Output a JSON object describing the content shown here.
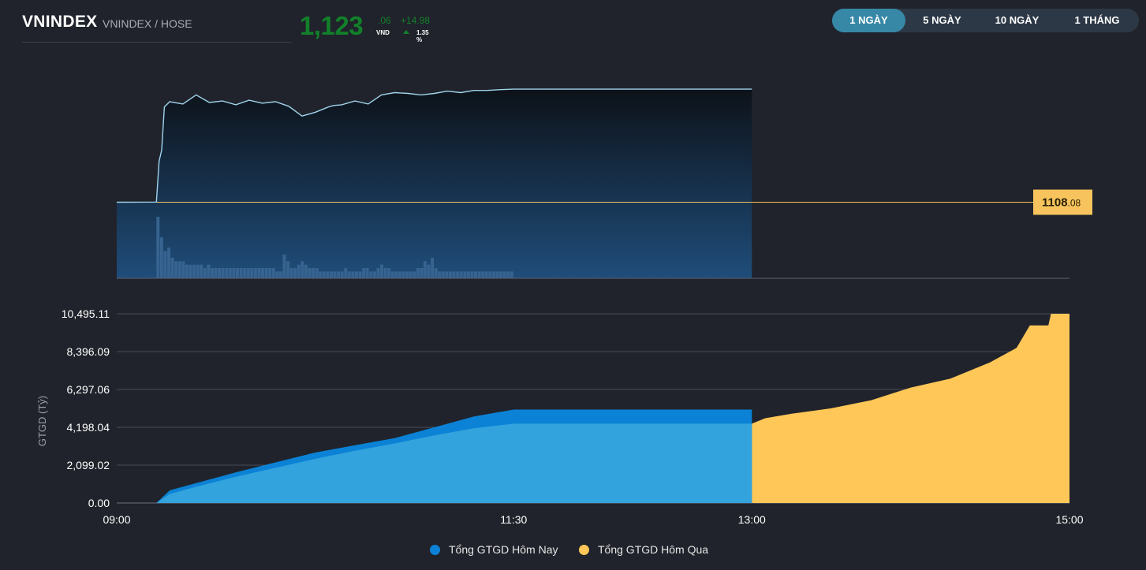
{
  "header": {
    "title": "VNINDEX",
    "subtitle": "VNINDEX / HOSE",
    "price_int": "1,123",
    "price_dec": ".06",
    "price_unit": "VND",
    "change": "+14.98",
    "change_pct": "1.35 %"
  },
  "tabs": [
    {
      "label": "1 NGÀY",
      "active": true
    },
    {
      "label": "5 NGÀY",
      "active": false
    },
    {
      "label": "10 NGÀY",
      "active": false
    },
    {
      "label": "1 THÁNG",
      "active": false
    }
  ],
  "colors": {
    "up": "#12802a",
    "index_line": "#9fd3ec",
    "reference": "#f6c35d",
    "today_light": "#33a3de",
    "today_dark": "#0b82d6",
    "yesterday": "#ffc758",
    "volume": "#36638f"
  },
  "chart_data": [
    {
      "type": "line",
      "name": "intraday-index",
      "reference_label_int": "1108",
      "reference_label_dec": ".08",
      "reference_value": 1108.08,
      "ylim": [
        1098,
        1126
      ],
      "x_range": [
        "09:00",
        "15:00"
      ],
      "series": [
        {
          "x": [
            "09:15",
            "09:16",
            "09:17",
            "09:18",
            "09:20",
            "09:25",
            "09:30",
            "09:35",
            "09:40",
            "09:45",
            "09:50",
            "09:55",
            "10:00",
            "10:05",
            "10:10",
            "10:15",
            "10:20",
            "10:22",
            "10:25",
            "10:30",
            "10:35",
            "10:40",
            "10:45",
            "10:50",
            "10:55",
            "11:00",
            "11:05",
            "11:10",
            "11:15",
            "11:20",
            "11:25",
            "11:30",
            "12:00",
            "13:00"
          ],
          "values": [
            1108.1,
            1113.5,
            1115.0,
            1120.7,
            1121.4,
            1121.1,
            1122.3,
            1121.3,
            1121.5,
            1121.0,
            1121.6,
            1121.2,
            1121.4,
            1120.8,
            1119.5,
            1120.0,
            1120.7,
            1120.9,
            1121.0,
            1121.5,
            1121.1,
            1122.3,
            1122.6,
            1122.5,
            1122.3,
            1122.5,
            1122.8,
            1122.6,
            1122.9,
            1122.9,
            1123.0,
            1123.06,
            1123.06,
            1123.06
          ]
        }
      ],
      "volume": {
        "x_start": "09:15",
        "x_end": "11:30",
        "values": [
          18,
          12,
          8,
          9,
          6,
          5,
          5,
          5,
          4,
          4,
          4,
          4,
          4,
          3,
          4,
          3,
          3,
          3,
          3,
          3,
          3,
          3,
          3,
          3,
          3,
          3,
          3,
          3,
          3,
          3,
          3,
          3,
          3,
          2,
          2,
          7,
          5,
          3,
          3,
          4,
          5,
          4,
          3,
          3,
          3,
          2,
          2,
          2,
          2,
          2,
          2,
          2,
          3,
          2,
          2,
          2,
          2,
          3,
          3,
          2,
          2,
          3,
          4,
          3,
          3,
          2,
          2,
          2,
          2,
          2,
          2,
          2,
          3,
          3,
          5,
          4,
          6,
          3,
          2,
          2,
          2,
          2,
          2,
          2,
          2,
          2,
          2,
          2,
          2,
          2,
          2,
          2,
          2,
          2,
          2,
          2,
          2,
          2,
          2
        ]
      }
    },
    {
      "type": "area",
      "ylabel": "GTGD (Tỷ)",
      "x_ticks": [
        "09:00",
        "11:30",
        "13:00",
        "15:00"
      ],
      "y_ticks": [
        "0.00",
        "2,099.02",
        "4,198.04",
        "6,297.06",
        "8,396.09",
        "10,495.11"
      ],
      "ylim": [
        0,
        10495.11
      ],
      "grid": true,
      "legend_position": "bottom",
      "series": [
        {
          "name": "Tổng GTGD Hôm Nay",
          "x": [
            "09:00",
            "09:15",
            "09:20",
            "09:30",
            "09:45",
            "10:00",
            "10:15",
            "10:30",
            "10:45",
            "11:00",
            "11:15",
            "11:30",
            "13:00"
          ],
          "values": [
            0,
            0,
            700,
            1100,
            1700,
            2250,
            2800,
            3200,
            3600,
            4200,
            4800,
            5180,
            5180
          ]
        },
        {
          "name": "Tổng GTGD Hôm Qua",
          "x": [
            "09:00",
            "09:15",
            "09:20",
            "09:30",
            "09:45",
            "10:00",
            "10:15",
            "10:30",
            "10:45",
            "11:00",
            "11:15",
            "11:30",
            "13:00",
            "13:05",
            "13:15",
            "13:30",
            "13:45",
            "14:00",
            "14:15",
            "14:30",
            "14:40",
            "14:45",
            "14:52",
            "14:53",
            "15:00"
          ],
          "values": [
            0,
            0,
            500,
            900,
            1450,
            1950,
            2450,
            2900,
            3300,
            3750,
            4150,
            4400,
            4400,
            4700,
            4950,
            5250,
            5700,
            6400,
            6900,
            7800,
            8600,
            9850,
            9850,
            10495.11,
            10495.11
          ]
        }
      ]
    }
  ]
}
